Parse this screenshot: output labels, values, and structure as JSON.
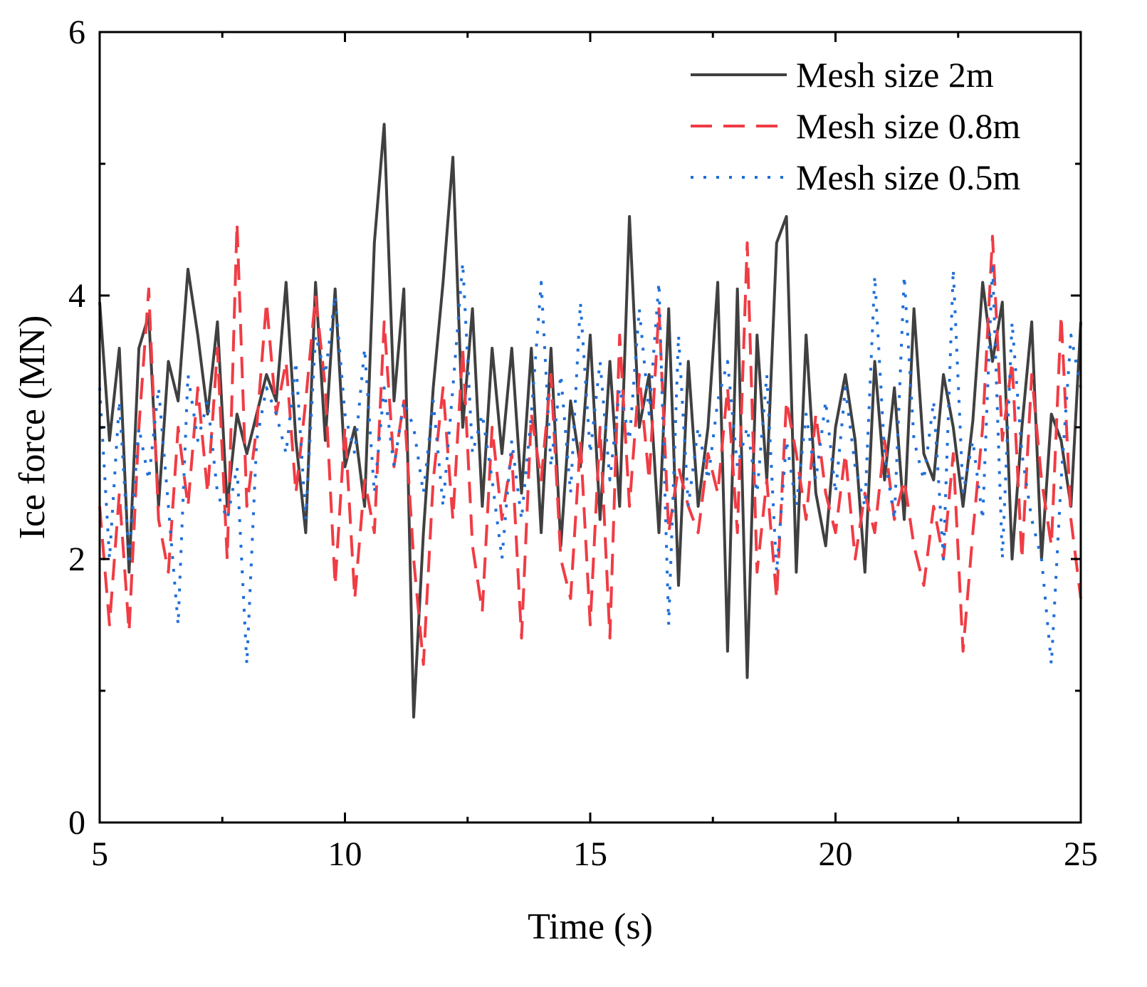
{
  "chart_data": {
    "type": "line",
    "xlabel": "Time (s)",
    "ylabel": "Ice force (MN)",
    "xlim": [
      5,
      25
    ],
    "ylim": [
      0,
      6
    ],
    "xticks": [
      5,
      10,
      15,
      20,
      25
    ],
    "yticks": [
      0,
      2,
      4,
      6
    ],
    "xminorticks": [
      7.5,
      12.5,
      17.5,
      22.5
    ],
    "yminorticks": [
      1,
      3,
      5
    ],
    "legend": "upper right",
    "x": [
      5.0,
      5.2,
      5.4,
      5.6,
      5.8,
      6.0,
      6.2,
      6.4,
      6.6,
      6.8,
      7.0,
      7.2,
      7.4,
      7.6,
      7.8,
      8.0,
      8.2,
      8.4,
      8.6,
      8.8,
      9.0,
      9.2,
      9.4,
      9.6,
      9.8,
      10.0,
      10.2,
      10.4,
      10.6,
      10.8,
      11.0,
      11.2,
      11.4,
      11.6,
      11.8,
      12.0,
      12.2,
      12.4,
      12.6,
      12.8,
      13.0,
      13.2,
      13.4,
      13.6,
      13.8,
      14.0,
      14.2,
      14.4,
      14.6,
      14.8,
      15.0,
      15.2,
      15.4,
      15.6,
      15.8,
      16.0,
      16.2,
      16.4,
      16.6,
      16.8,
      17.0,
      17.2,
      17.4,
      17.6,
      17.8,
      18.0,
      18.2,
      18.4,
      18.6,
      18.8,
      19.0,
      19.2,
      19.4,
      19.6,
      19.8,
      20.0,
      20.2,
      20.4,
      20.6,
      20.8,
      21.0,
      21.2,
      21.4,
      21.6,
      21.8,
      22.0,
      22.2,
      22.4,
      22.6,
      22.8,
      23.0,
      23.2,
      23.4,
      23.6,
      23.8,
      24.0,
      24.2,
      24.4,
      24.6,
      24.8,
      25.0
    ],
    "series": [
      {
        "name": "Mesh size 2m",
        "color": "#404040",
        "dash": "solid",
        "values": [
          3.95,
          2.9,
          3.6,
          1.9,
          3.6,
          3.85,
          2.4,
          3.5,
          3.2,
          4.2,
          3.7,
          3.1,
          3.8,
          2.4,
          3.1,
          2.8,
          3.1,
          3.4,
          3.2,
          4.1,
          2.9,
          2.2,
          4.1,
          2.9,
          4.05,
          2.7,
          3.0,
          2.4,
          4.4,
          5.3,
          3.2,
          4.05,
          0.8,
          2.2,
          3.3,
          4.1,
          5.05,
          3.0,
          3.9,
          2.4,
          3.6,
          2.8,
          3.6,
          2.5,
          3.6,
          2.2,
          3.6,
          2.1,
          3.2,
          2.7,
          3.7,
          2.3,
          3.5,
          2.4,
          4.6,
          3.0,
          3.4,
          2.2,
          3.9,
          1.8,
          3.5,
          2.4,
          3.0,
          4.1,
          1.3,
          4.05,
          1.1,
          3.7,
          2.6,
          4.4,
          4.6,
          1.9,
          3.7,
          2.5,
          2.1,
          3.0,
          3.4,
          2.9,
          1.9,
          3.5,
          2.6,
          3.3,
          2.3,
          3.9,
          2.8,
          2.6,
          3.4,
          3.0,
          2.4,
          3.05,
          4.1,
          3.5,
          3.95,
          2.0,
          3.0,
          3.8,
          2.0,
          3.1,
          2.9,
          2.4,
          3.8
        ]
      },
      {
        "name": "Mesh size 0.8m",
        "color": "#f03c44",
        "dash": "dashed",
        "values": [
          2.4,
          1.5,
          2.5,
          1.45,
          3.0,
          4.05,
          2.3,
          1.9,
          3.0,
          2.4,
          3.3,
          2.5,
          3.6,
          2.0,
          4.55,
          2.4,
          3.0,
          3.95,
          3.1,
          3.5,
          2.5,
          3.2,
          4.0,
          3.3,
          1.8,
          3.0,
          1.7,
          2.6,
          2.2,
          3.8,
          2.7,
          3.2,
          2.0,
          1.2,
          2.6,
          3.3,
          2.3,
          3.6,
          2.1,
          1.6,
          3.0,
          2.3,
          2.8,
          1.4,
          3.1,
          2.6,
          3.4,
          2.0,
          1.7,
          2.9,
          1.5,
          3.0,
          1.4,
          3.7,
          2.4,
          3.4,
          2.6,
          3.9,
          2.2,
          2.7,
          2.4,
          2.2,
          2.8,
          2.5,
          3.3,
          2.2,
          4.4,
          1.9,
          2.6,
          1.7,
          3.2,
          2.8,
          2.3,
          3.1,
          2.5,
          2.2,
          2.8,
          2.0,
          2.5,
          2.2,
          2.9,
          2.3,
          2.6,
          2.1,
          1.8,
          2.4,
          2.0,
          2.8,
          1.3,
          2.2,
          3.0,
          4.45,
          2.9,
          3.5,
          2.0,
          3.4,
          2.6,
          2.1,
          3.85,
          2.3,
          1.7
        ]
      },
      {
        "name": "Mesh size 0.5m",
        "color": "#1f6fd8",
        "dash": "dotted",
        "values": [
          3.3,
          2.0,
          3.2,
          2.0,
          3.0,
          2.6,
          3.3,
          2.4,
          1.5,
          3.4,
          2.9,
          3.2,
          2.5,
          2.3,
          2.7,
          1.2,
          2.9,
          3.3,
          3.1,
          2.8,
          3.5,
          2.3,
          3.7,
          3.4,
          4.0,
          3.1,
          2.8,
          3.6,
          2.5,
          3.3,
          2.7,
          3.2,
          3.0,
          2.5,
          3.2,
          2.4,
          3.3,
          4.25,
          2.8,
          3.1,
          2.6,
          2.0,
          2.9,
          2.3,
          3.1,
          4.1,
          2.7,
          3.4,
          2.5,
          3.95,
          2.8,
          3.5,
          2.6,
          3.3,
          2.9,
          3.9,
          3.1,
          4.1,
          1.5,
          3.7,
          2.4,
          3.0,
          2.6,
          3.2,
          3.5,
          2.7,
          3.0,
          2.5,
          3.4,
          1.9,
          2.9,
          2.4,
          3.1,
          2.6,
          3.2,
          2.5,
          3.3,
          2.7,
          2.4,
          4.15,
          2.8,
          2.3,
          4.15,
          2.9,
          2.6,
          3.2,
          2.0,
          4.2,
          2.5,
          2.9,
          2.3,
          4.25,
          2.0,
          3.8,
          2.8,
          2.3,
          2.0,
          1.2,
          2.6,
          3.7,
          3.3
        ]
      }
    ]
  }
}
